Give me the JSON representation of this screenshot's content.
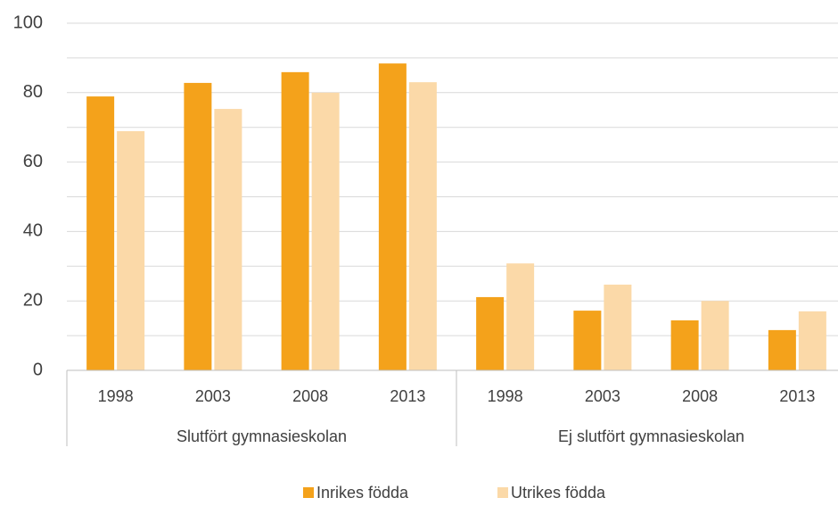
{
  "chart_data": {
    "type": "bar",
    "categories": [
      "1998",
      "2003",
      "2008",
      "2013",
      "1998",
      "2003",
      "2008",
      "2013"
    ],
    "groups": [
      "Slutfört gymnasieskolan",
      "Ej slutfört gymnasieskolan"
    ],
    "series": [
      {
        "name": "Inrikes födda",
        "color": "#f4a21b",
        "values": [
          78.9,
          82.8,
          85.9,
          88.4,
          21.1,
          17.2,
          14.4,
          11.6
        ]
      },
      {
        "name": "Utrikes födda",
        "color": "#fbd9a8",
        "values": [
          68.9,
          75.3,
          80.0,
          83.0,
          30.8,
          24.7,
          20.0,
          17.0
        ]
      }
    ],
    "ylim": [
      0,
      100
    ],
    "yticks": [
      0,
      20,
      40,
      60,
      80,
      100
    ],
    "minor_yticks": [
      10,
      30,
      50,
      70,
      90
    ],
    "grid": true,
    "legend": "bottom"
  }
}
